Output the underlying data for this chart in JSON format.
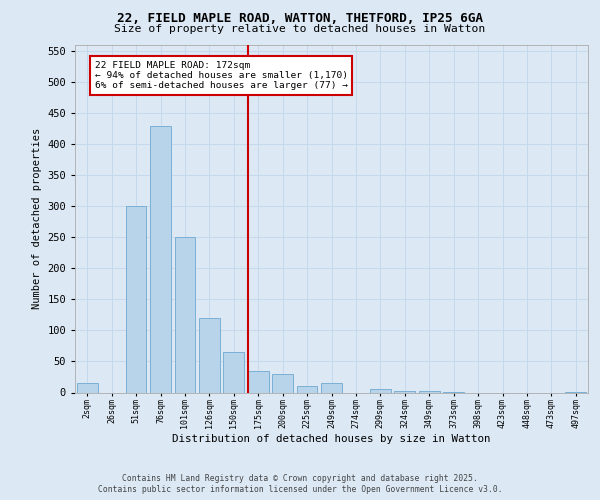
{
  "title_line1": "22, FIELD MAPLE ROAD, WATTON, THETFORD, IP25 6GA",
  "title_line2": "Size of property relative to detached houses in Watton",
  "xlabel": "Distribution of detached houses by size in Watton",
  "ylabel": "Number of detached properties",
  "background_color": "#dce9f5",
  "bar_color": "#b8d4ea",
  "bar_edge_color": "#7aafd4",
  "categories": [
    "2sqm",
    "26sqm",
    "51sqm",
    "76sqm",
    "101sqm",
    "126sqm",
    "150sqm",
    "175sqm",
    "200sqm",
    "225sqm",
    "249sqm",
    "274sqm",
    "299sqm",
    "324sqm",
    "349sqm",
    "373sqm",
    "398sqm",
    "423sqm",
    "448sqm",
    "473sqm",
    "497sqm"
  ],
  "values": [
    15,
    0,
    300,
    430,
    250,
    120,
    65,
    35,
    30,
    10,
    15,
    0,
    5,
    2,
    2,
    1,
    0,
    0,
    0,
    0,
    1
  ],
  "ylim": [
    0,
    560
  ],
  "yticks": [
    0,
    50,
    100,
    150,
    200,
    250,
    300,
    350,
    400,
    450,
    500,
    550
  ],
  "vline_idx": 7,
  "vline_color": "#cc0000",
  "annotation_text": "22 FIELD MAPLE ROAD: 172sqm\n← 94% of detached houses are smaller (1,170)\n6% of semi-detached houses are larger (77) →",
  "annotation_box_color": "#ffffff",
  "annotation_box_edge": "#cc0000",
  "footer_text": "Contains HM Land Registry data © Crown copyright and database right 2025.\nContains public sector information licensed under the Open Government Licence v3.0.",
  "grid_color": "#c5d8ec"
}
